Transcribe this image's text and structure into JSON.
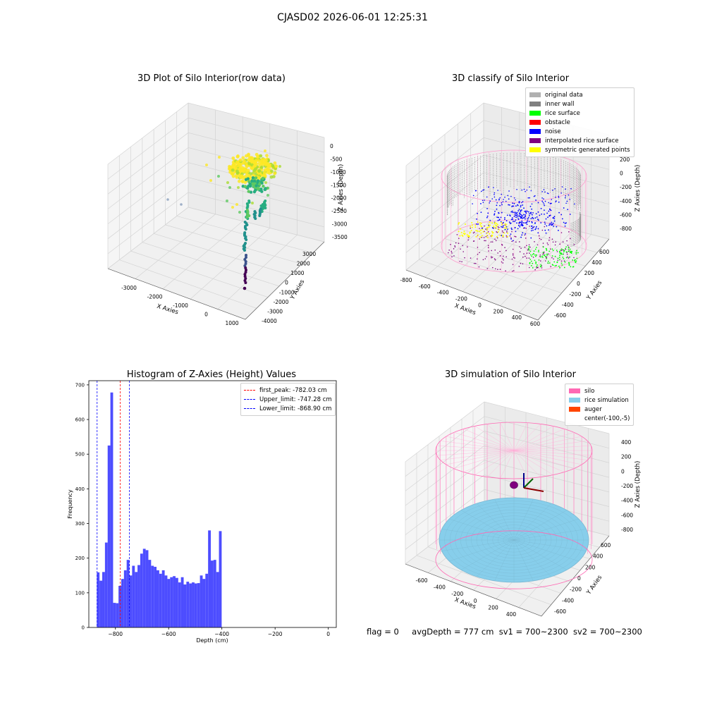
{
  "figure": {
    "suptitle": "CJASD02 2026-06-01 12:25:31",
    "status": {
      "flag": "flag = 0",
      "avg_depth": "avgDepth = 777 cm",
      "sv1": "sv1 = 700~2300",
      "sv2": "sv2 = 700~2300"
    },
    "colors": {
      "original": "#b0b0b0",
      "inner_wall": "#808080",
      "rice_surface": "#00ff00",
      "obstacle": "#ff0000",
      "noise": "#0000ff",
      "interpolated": "#800080",
      "symmetric": "#ffff00",
      "silo": "#ff69b4",
      "rice_sim": "#87ceeb",
      "auger": "#ff4500",
      "hist_bar": "#4d4dff"
    }
  },
  "chart_data": [
    {
      "type": "scatter",
      "panel": "top-left",
      "title": "3D Plot of Silo Interior(row data)",
      "xlabel": "X Axies",
      "ylabel": "Y Axies",
      "zlabel": "Z Axies (Depth)",
      "xticks": [
        "-3000",
        "-2000",
        "-1000",
        "0",
        "1000"
      ],
      "yticks": [
        "-4000",
        "-3000",
        "-2000",
        "-1000",
        "0",
        "1000",
        "2000",
        "3000"
      ],
      "zticks": [
        "0",
        "-500",
        "-1000",
        "-1500",
        "-2000",
        "-2500",
        "-3000",
        "-3500"
      ],
      "colormap": "viridis",
      "grid": true
    },
    {
      "type": "scatter",
      "panel": "top-right",
      "title": "3D classify of Silo Interior",
      "xlabel": "X Axies",
      "ylabel": "Y Axies",
      "zlabel": "Z Axies (Depth)",
      "xticks": [
        "-800",
        "-600",
        "-400",
        "-200",
        "0",
        "200",
        "400",
        "600"
      ],
      "yticks": [
        "-600",
        "-400",
        "-200",
        "0",
        "200",
        "400",
        "600"
      ],
      "zticks": [
        "200",
        "0",
        "-200",
        "-400",
        "-600",
        "-800"
      ],
      "zticks_partial_top": "00",
      "legend": [
        "original data",
        "inner wall",
        "rice surface",
        "obstacle",
        "noise",
        "interpolated rice surface",
        "symmetric generated points"
      ],
      "legend_position": "top-right",
      "grid": true
    },
    {
      "type": "bar",
      "panel": "bottom-left",
      "title": "Histogram of Z-Axies (Height) Values",
      "xlabel": "Depth (cm)",
      "ylabel": "Frequency",
      "xlim": [
        -900,
        30
      ],
      "ylim": [
        0,
        712
      ],
      "xticks": [
        -800,
        -600,
        -400,
        -200,
        0
      ],
      "yticks": [
        0,
        100,
        200,
        300,
        400,
        500,
        600,
        700
      ],
      "bin_start": -870,
      "bin_width": 10.2,
      "values": [
        159,
        135,
        160,
        245,
        525,
        678,
        71,
        70,
        120,
        140,
        165,
        195,
        150,
        178,
        160,
        180,
        213,
        227,
        223,
        195,
        178,
        175,
        165,
        155,
        165,
        150,
        140,
        145,
        148,
        143,
        130,
        145,
        124,
        132,
        127,
        130,
        127,
        128,
        150,
        140,
        155,
        280,
        193,
        195,
        160,
        278
      ],
      "vlines": [
        {
          "label": "first_peak: -782.03 cm",
          "x": -782.03,
          "color": "#ff0000"
        },
        {
          "label": "Upper_limit: -747.28 cm",
          "x": -747.28,
          "color": "#0000ff"
        },
        {
          "label": "Lower_limit: -868.90 cm",
          "x": -868.9,
          "color": "#0000ff"
        }
      ],
      "legend_position": "top-right"
    },
    {
      "type": "surface",
      "panel": "bottom-right",
      "title": "3D simulation of Silo Interior",
      "xlabel": "X Axies",
      "ylabel": "Y Axies",
      "zlabel": "Z Axies (Depth)",
      "xticks": [
        "-600",
        "-400",
        "-200",
        "0",
        "200",
        "400"
      ],
      "yticks": [
        "-600",
        "-400",
        "-200",
        "0",
        "200",
        "400",
        "600"
      ],
      "zticks": [
        "400",
        "200",
        "0",
        "-200",
        "-400",
        "-600",
        "-800"
      ],
      "legend": [
        "silo",
        "rice simulation",
        "auger",
        "center(-100,-5)"
      ],
      "legend_position": "top-right",
      "grid": true
    }
  ]
}
